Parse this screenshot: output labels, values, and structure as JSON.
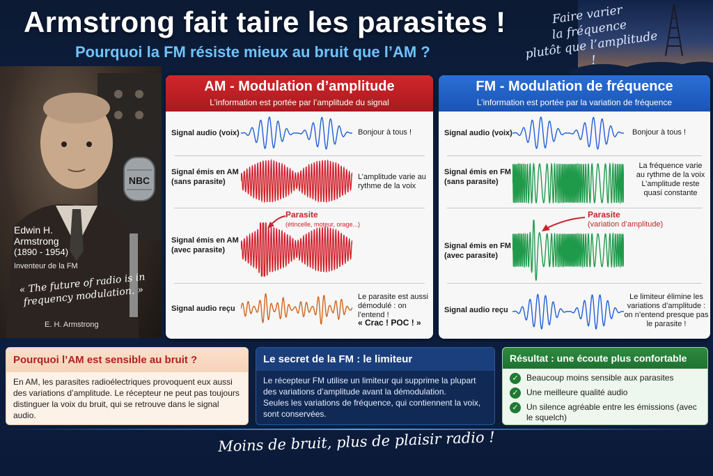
{
  "header": {
    "title": "Armstrong fait taire les parasites !",
    "subtitle": "Pourquoi la FM résiste mieux au bruit que l’AM ?",
    "tagline": [
      "Faire varier",
      "la fréquence",
      "plutôt que l’amplitude !"
    ]
  },
  "portrait": {
    "name_line1": "Edwin H.",
    "name_line2": "Armstrong",
    "years": "(1890 - 1954)",
    "role": "Inventeur de la FM",
    "quote": "« The future of radio is in frequency modulation. »",
    "quote_author": "E. H. Armstrong",
    "mic_label": "NBC"
  },
  "am": {
    "title": "AM - Modulation d’amplitude",
    "subtitle": "L’information est portée par l’amplitude du signal",
    "rows": [
      {
        "label": "Signal audio (voix)",
        "desc": "Bonjour à tous !"
      },
      {
        "label": "Signal émis en AM (sans parasite)",
        "desc": "L’amplitude varie au rythme de la voix"
      },
      {
        "label": "Signal émis en AM (avec parasite)",
        "desc": ""
      },
      {
        "label": "Signal audio reçu",
        "desc": "Le parasite est aussi démodulé : on l’entend !"
      }
    ],
    "parasite_title": "Parasite",
    "parasite_detail": "(étincelle, moteur, orage...)",
    "crac": "« Crac ! POC ! »"
  },
  "fm": {
    "title": "FM - Modulation de fréquence",
    "subtitle": "L’information est portée par la variation de fréquence",
    "rows": [
      {
        "label": "Signal audio (voix)",
        "desc": "Bonjour à tous !"
      },
      {
        "label": "Signal émis en FM (sans parasite)",
        "desc": "La fréquence varie au rythme de la voix L’amplitude reste quasi constante"
      },
      {
        "label": "Signal émis en FM (avec parasite)",
        "desc": ""
      },
      {
        "label": "Signal audio reçu",
        "desc": "Le limiteur élimine les variations d’amplitude : on n’entend presque pas le parasite !"
      }
    ],
    "parasite_title": "Parasite",
    "parasite_detail": "(variation d’amplitude)"
  },
  "boxes": {
    "why": {
      "title": "Pourquoi l’AM est sensible au bruit ?",
      "text": "En AM, les parasites radioélectriques provoquent eux aussi des variations d’amplitude. Le récepteur ne peut pas toujours distinguer la voix du bruit, qui se retrouve dans le signal audio."
    },
    "secret": {
      "title": "Le secret de la FM : le limiteur",
      "text1": "Le récepteur FM utilise un limiteur qui supprime la plupart des variations d’amplitude avant la démodulation.",
      "text2": "Seules les variations de fréquence, qui contiennent la voix, sont conservées."
    },
    "result": {
      "title": "Résultat : une écoute plus confortable",
      "items": [
        "Beaucoup moins sensible aux parasites",
        "Une meilleure qualité audio",
        "Un silence agréable entre les émissions (avec le squelch)"
      ]
    }
  },
  "footer": "Moins de bruit, plus de plaisir radio !",
  "colors": {
    "am_accent": "#c8232a",
    "fm_accent": "#2264c9",
    "voice_blue": "#1f5fd6",
    "am_red": "#d21f2b",
    "received_orange": "#d1641a",
    "fm_green": "#1f9a4a",
    "result_green": "#1f7231"
  }
}
